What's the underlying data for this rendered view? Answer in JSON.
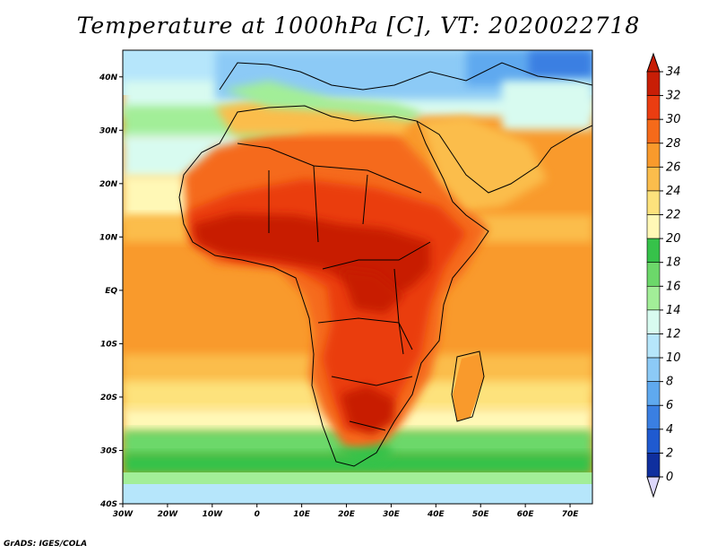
{
  "title": "Temperature at 1000hPa [C], VT: 2020022718",
  "footer": "GrADS: IGES/COLA",
  "map": {
    "lon_range": [
      -30,
      75
    ],
    "lat_range": [
      -40,
      45
    ],
    "lon_ticks": [
      "30W",
      "20W",
      "10W",
      "0",
      "10E",
      "20E",
      "30E",
      "40E",
      "50E",
      "60E",
      "70E"
    ],
    "lat_ticks": [
      "40N",
      "30N",
      "20N",
      "10N",
      "EQ",
      "10S",
      "20S",
      "30S",
      "40S"
    ],
    "lon_tick_values": [
      -30,
      -20,
      -10,
      0,
      10,
      20,
      30,
      40,
      50,
      60,
      70
    ],
    "lat_tick_values": [
      40,
      30,
      20,
      10,
      0,
      -10,
      -20,
      -30,
      -40
    ]
  },
  "colorbar": {
    "levels": [
      "34",
      "32",
      "30",
      "28",
      "26",
      "24",
      "22",
      "20",
      "18",
      "16",
      "14",
      "12",
      "10",
      "8",
      "6",
      "4",
      "2",
      "0"
    ],
    "colors": [
      "#c81e06",
      "#ea3d11",
      "#f56a1a",
      "#f99a2c",
      "#fbbd4c",
      "#fde27c",
      "#fff8b6",
      "#36c24a",
      "#6cd86a",
      "#a2ee98",
      "#d8fbf0",
      "#b6e6fb",
      "#8ccaf6",
      "#5fa9ef",
      "#3a7fe2",
      "#1f5ad0",
      "#0f2f9e",
      "#0a1b70",
      "#dcd7fb"
    ],
    "under_color": "#dcd7fb",
    "over_color": "#c81e06"
  },
  "colors": {
    "ocean_mid": "#f99a2c",
    "ocean_south": "#6cd86a",
    "mediterranean": "#8ccaf6",
    "sahara_hot": "#ea3d11",
    "core_hot": "#c81e06"
  }
}
